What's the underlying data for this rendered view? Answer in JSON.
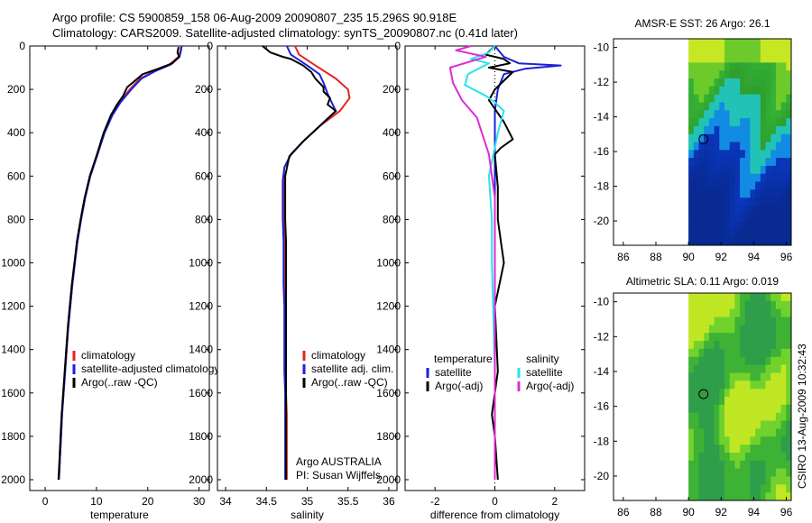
{
  "header": {
    "line1": "Argo profile: CS 5900859_158 06-Aug-2009 20090807_235 15.296S 90.918E",
    "line2": "Climatology: CARS2009. Satellite-adjusted climatology: synTS_20090807.nc (0.41d later)"
  },
  "side_stamp": "CSIRO 13-Aug-2009 10:32:43",
  "colors": {
    "climatology": "#e8221e",
    "satellite": "#1a22d8",
    "argo": "#000000",
    "satellite_diff": "#2ae3ec",
    "argo_adj": "#dc2cd6"
  },
  "chart_data": [
    {
      "type": "line",
      "id": "temperature",
      "xlabel": "temperature",
      "ylabel": "",
      "xlim": [
        -3,
        32
      ],
      "ylim": [
        2050,
        0
      ],
      "xticks": [
        0,
        10,
        20,
        30
      ],
      "yticks": [
        0,
        200,
        400,
        600,
        800,
        1000,
        1200,
        1400,
        1600,
        1800,
        2000
      ],
      "legend": [
        "climatology",
        "satellite-adjusted climatology",
        "Argo(..raw -QC)"
      ],
      "series": [
        {
          "name": "climatology",
          "color": "climatology",
          "points": [
            [
              26.5,
              0
            ],
            [
              26.4,
              20
            ],
            [
              26.0,
              50
            ],
            [
              24.0,
              90
            ],
            [
              21.0,
              120
            ],
            [
              18.5,
              150
            ],
            [
              16.5,
              200
            ],
            [
              14.5,
              260
            ],
            [
              13.0,
              320
            ],
            [
              11.5,
              400
            ],
            [
              10.2,
              500
            ],
            [
              8.8,
              600
            ],
            [
              7.8,
              700
            ],
            [
              7.0,
              800
            ],
            [
              6.3,
              900
            ],
            [
              5.8,
              1000
            ],
            [
              5.3,
              1100
            ],
            [
              4.9,
              1200
            ],
            [
              4.5,
              1300
            ],
            [
              4.2,
              1400
            ],
            [
              3.9,
              1500
            ],
            [
              3.6,
              1600
            ],
            [
              3.3,
              1700
            ],
            [
              3.1,
              1800
            ],
            [
              2.9,
              1900
            ],
            [
              2.7,
              2000
            ]
          ]
        },
        {
          "name": "satellite-adjusted climatology",
          "color": "satellite",
          "points": [
            [
              26.6,
              0
            ],
            [
              26.5,
              20
            ],
            [
              26.2,
              50
            ],
            [
              24.5,
              85
            ],
            [
              21.5,
              115
            ],
            [
              18.8,
              150
            ],
            [
              16.8,
              200
            ],
            [
              14.7,
              260
            ],
            [
              13.1,
              320
            ],
            [
              11.6,
              400
            ],
            [
              10.2,
              500
            ],
            [
              8.8,
              600
            ],
            [
              7.8,
              700
            ],
            [
              7.0,
              800
            ],
            [
              6.3,
              900
            ],
            [
              5.8,
              1000
            ],
            [
              5.3,
              1100
            ],
            [
              4.9,
              1200
            ],
            [
              4.5,
              1300
            ],
            [
              4.2,
              1400
            ],
            [
              3.9,
              1500
            ],
            [
              3.6,
              1600
            ],
            [
              3.3,
              1700
            ],
            [
              3.1,
              1800
            ],
            [
              2.9,
              1900
            ],
            [
              2.7,
              1995
            ]
          ]
        },
        {
          "name": "Argo(..raw -QC)",
          "color": "argo",
          "points": [
            [
              26.0,
              5
            ],
            [
              25.8,
              30
            ],
            [
              26.1,
              50
            ],
            [
              24.8,
              80
            ],
            [
              22.0,
              105
            ],
            [
              19.0,
              130
            ],
            [
              17.5,
              160
            ],
            [
              16.0,
              190
            ],
            [
              15.2,
              230
            ],
            [
              14.0,
              270
            ],
            [
              12.8,
              320
            ],
            [
              11.4,
              400
            ],
            [
              10.1,
              500
            ],
            [
              8.7,
              600
            ],
            [
              7.7,
              700
            ],
            [
              6.9,
              800
            ],
            [
              6.2,
              900
            ],
            [
              5.7,
              1000
            ],
            [
              5.2,
              1100
            ],
            [
              4.8,
              1200
            ],
            [
              4.4,
              1300
            ],
            [
              4.1,
              1400
            ],
            [
              3.8,
              1500
            ],
            [
              3.5,
              1600
            ],
            [
              3.2,
              1700
            ],
            [
              3.0,
              1800
            ],
            [
              2.8,
              1900
            ],
            [
              2.6,
              2000
            ]
          ]
        }
      ]
    },
    {
      "type": "line",
      "id": "salinity",
      "xlabel": "salinity",
      "ylabel": "",
      "xlim": [
        33.9,
        36.1
      ],
      "ylim": [
        2050,
        0
      ],
      "xticks": [
        34,
        34.5,
        35,
        35.5,
        36
      ],
      "yticks": [
        0,
        200,
        400,
        600,
        800,
        1000,
        1200,
        1400,
        1600,
        1800,
        2000
      ],
      "legend": [
        "climatology",
        "satellite adj. clim.",
        "Argo(..raw -QC)"
      ],
      "annotation": [
        "Argo AUSTRALIA",
        "PI: Susan Wijffels"
      ],
      "series": [
        {
          "name": "climatology",
          "color": "climatology",
          "points": [
            [
              34.85,
              0
            ],
            [
              34.9,
              40
            ],
            [
              35.1,
              90
            ],
            [
              35.35,
              150
            ],
            [
              35.5,
              200
            ],
            [
              35.52,
              240
            ],
            [
              35.4,
              300
            ],
            [
              35.15,
              370
            ],
            [
              34.95,
              440
            ],
            [
              34.8,
              500
            ],
            [
              34.72,
              560
            ],
            [
              34.71,
              620
            ],
            [
              34.71,
              700
            ],
            [
              34.71,
              800
            ],
            [
              34.72,
              900
            ],
            [
              34.72,
              1000
            ],
            [
              34.72,
              1100
            ],
            [
              34.73,
              1200
            ],
            [
              34.73,
              1300
            ],
            [
              34.74,
              1400
            ],
            [
              34.74,
              1500
            ],
            [
              34.74,
              1600
            ],
            [
              34.75,
              1700
            ],
            [
              34.75,
              1800
            ],
            [
              34.75,
              1900
            ],
            [
              34.75,
              2000
            ]
          ]
        },
        {
          "name": "satellite adj. clim.",
          "color": "satellite",
          "points": [
            [
              34.75,
              0
            ],
            [
              34.8,
              40
            ],
            [
              35.0,
              90
            ],
            [
              35.15,
              130
            ],
            [
              35.2,
              170
            ],
            [
              35.25,
              220
            ],
            [
              35.3,
              260
            ],
            [
              35.35,
              300
            ],
            [
              35.15,
              370
            ],
            [
              34.95,
              440
            ],
            [
              34.8,
              500
            ],
            [
              34.72,
              560
            ],
            [
              34.7,
              620
            ],
            [
              34.7,
              700
            ],
            [
              34.7,
              800
            ],
            [
              34.71,
              900
            ],
            [
              34.71,
              1000
            ],
            [
              34.71,
              1100
            ],
            [
              34.72,
              1200
            ],
            [
              34.72,
              1300
            ],
            [
              34.72,
              1400
            ],
            [
              34.72,
              1500
            ],
            [
              34.73,
              1600
            ],
            [
              34.73,
              1700
            ],
            [
              34.73,
              1800
            ],
            [
              34.73,
              1900
            ],
            [
              34.73,
              2000
            ]
          ]
        },
        {
          "name": "Argo(..raw -QC)",
          "color": "argo",
          "points": [
            [
              34.45,
              0
            ],
            [
              34.55,
              30
            ],
            [
              34.7,
              50
            ],
            [
              34.8,
              60
            ],
            [
              34.95,
              90
            ],
            [
              35.05,
              120
            ],
            [
              35.1,
              150
            ],
            [
              35.15,
              170
            ],
            [
              35.2,
              190
            ],
            [
              35.2,
              210
            ],
            [
              35.28,
              240
            ],
            [
              35.25,
              270
            ],
            [
              35.35,
              300
            ],
            [
              35.15,
              370
            ],
            [
              34.95,
              440
            ],
            [
              34.78,
              510
            ],
            [
              34.73,
              600
            ],
            [
              34.73,
              700
            ],
            [
              34.73,
              800
            ],
            [
              34.74,
              900
            ],
            [
              34.74,
              1000
            ],
            [
              34.74,
              1100
            ],
            [
              34.74,
              1200
            ],
            [
              34.74,
              1300
            ],
            [
              34.74,
              1400
            ],
            [
              34.74,
              1500
            ],
            [
              34.74,
              1600
            ],
            [
              34.74,
              1700
            ],
            [
              34.74,
              1800
            ],
            [
              34.74,
              1900
            ],
            [
              34.74,
              2000
            ]
          ]
        }
      ]
    },
    {
      "type": "line",
      "id": "difference",
      "xlabel": "difference from climatology",
      "ylabel": "",
      "xlim": [
        -3,
        3
      ],
      "ylim": [
        2050,
        0
      ],
      "xticks": [
        -2,
        0,
        2
      ],
      "yticks": [
        0,
        200,
        400,
        600,
        800,
        1000,
        1200,
        1400,
        1600,
        1800,
        2000
      ],
      "legend_headers": [
        "temperature",
        "salinity"
      ],
      "legend": [
        [
          "satellite",
          "satellite"
        ],
        [
          "Argo(-adj)",
          "Argo(-adj)"
        ]
      ],
      "series": [
        {
          "name": "temperature satellite",
          "color": "satellite",
          "points": [
            [
              0.0,
              0
            ],
            [
              0.3,
              50
            ],
            [
              0.8,
              80
            ],
            [
              2.2,
              90
            ],
            [
              1.0,
              105
            ],
            [
              0.3,
              130
            ],
            [
              0.1,
              200
            ],
            [
              0.0,
              300
            ],
            [
              0.0,
              400
            ],
            [
              0.0,
              600
            ],
            [
              0.0,
              1000
            ],
            [
              0.0,
              1500
            ],
            [
              0.0,
              2000
            ]
          ]
        },
        {
          "name": "temperature Argo(-adj)",
          "color": "argo",
          "points": [
            [
              0.0,
              0
            ],
            [
              -0.3,
              40
            ],
            [
              0.3,
              60
            ],
            [
              0.5,
              80
            ],
            [
              -0.2,
              100
            ],
            [
              0.6,
              120
            ],
            [
              0.0,
              200
            ],
            [
              -0.2,
              250
            ],
            [
              0.3,
              350
            ],
            [
              0.6,
              430
            ],
            [
              0.2,
              470
            ],
            [
              0.0,
              500
            ],
            [
              0.1,
              650
            ],
            [
              0.1,
              800
            ],
            [
              0.2,
              900
            ],
            [
              0.3,
              1000
            ],
            [
              0.0,
              1200
            ],
            [
              0.1,
              1500
            ],
            [
              -0.1,
              1700
            ],
            [
              0.0,
              1800
            ],
            [
              0.1,
              2000
            ]
          ]
        },
        {
          "name": "salinity satellite",
          "color": "satellite_diff",
          "points": [
            [
              0.0,
              0
            ],
            [
              -0.2,
              30
            ],
            [
              -0.8,
              60
            ],
            [
              -0.2,
              80
            ],
            [
              -0.9,
              130
            ],
            [
              -1.0,
              180
            ],
            [
              -0.3,
              230
            ],
            [
              0.0,
              260
            ],
            [
              0.3,
              300
            ],
            [
              0.1,
              400
            ],
            [
              -0.2,
              600
            ],
            [
              -0.1,
              800
            ],
            [
              -0.1,
              1000
            ],
            [
              0.0,
              1500
            ],
            [
              0.0,
              2000
            ]
          ]
        },
        {
          "name": "salinity Argo(-adj)",
          "color": "argo_adj",
          "points": [
            [
              -0.8,
              0
            ],
            [
              -1.3,
              20
            ],
            [
              -0.3,
              50
            ],
            [
              -1.5,
              100
            ],
            [
              -1.4,
              170
            ],
            [
              -1.1,
              250
            ],
            [
              -0.6,
              330
            ],
            [
              -0.2,
              500
            ],
            [
              0.0,
              700
            ],
            [
              0.0,
              1000
            ],
            [
              0.0,
              1500
            ],
            [
              0.0,
              2000
            ]
          ]
        }
      ]
    },
    {
      "type": "heatmap",
      "id": "sst_map",
      "title": "AMSR-E SST: 26 Argo: 26.1",
      "xlim": [
        85.4,
        96.3
      ],
      "ylim": [
        -21.4,
        -9.5
      ],
      "xticks": [
        86,
        88,
        90,
        92,
        94,
        96
      ],
      "yticks": [
        -10,
        -12,
        -14,
        -16,
        -18,
        -20
      ],
      "data_lon_range": [
        90,
        96.3
      ],
      "argo_position": {
        "lon": 90.918,
        "lat": -15.296
      }
    },
    {
      "type": "heatmap",
      "id": "sla_map",
      "title": "Altimetric SLA: 0.11 Argo: 0.019",
      "xlim": [
        85.4,
        96.3
      ],
      "ylim": [
        -21.4,
        -9.5
      ],
      "xticks": [
        86,
        88,
        90,
        92,
        94,
        96
      ],
      "yticks": [
        -10,
        -12,
        -14,
        -16,
        -18,
        -20
      ],
      "data_lon_range": [
        90,
        96.3
      ],
      "argo_position": {
        "lon": 90.918,
        "lat": -15.296
      }
    }
  ]
}
